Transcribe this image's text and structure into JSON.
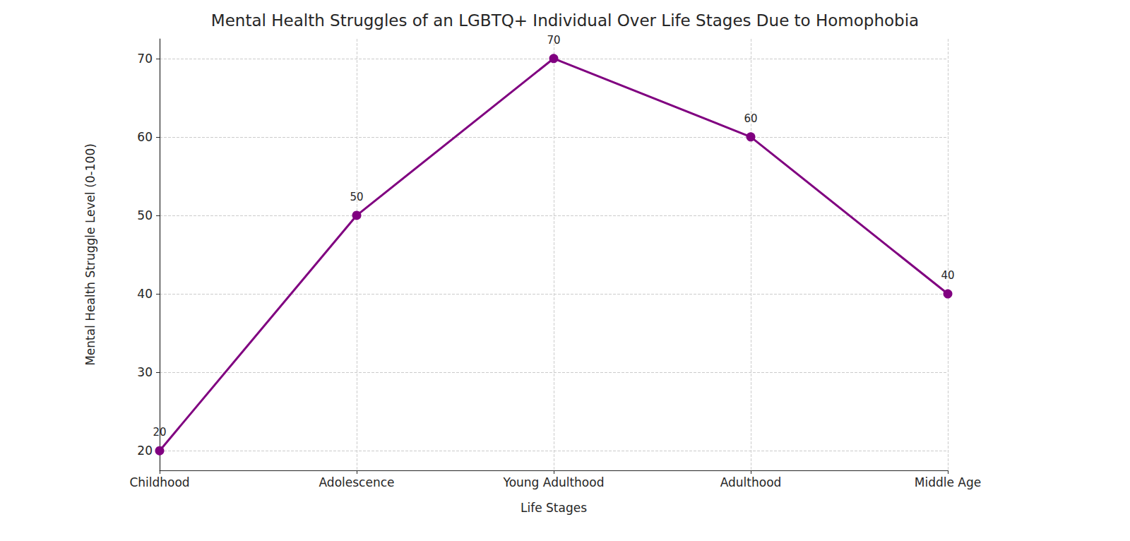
{
  "chart_data": {
    "type": "line",
    "title": "Mental Health Struggles of an LGBTQ+ Individual Over Life Stages Due to Homophobia",
    "x_label": "Life Stages",
    "y_label": "Mental Health Struggle Level (0-100)",
    "categories": [
      "Childhood",
      "Adolescence",
      "Young Adulthood",
      "Adulthood",
      "Middle Age"
    ],
    "values": [
      20,
      50,
      70,
      60,
      40
    ],
    "color": "#800080",
    "marker": "o",
    "line_style": "solid",
    "ylim": [
      17.5,
      72.5
    ],
    "yticks": [
      20,
      30,
      40,
      50,
      60,
      70
    ],
    "grid": true,
    "data_labels": true
  }
}
